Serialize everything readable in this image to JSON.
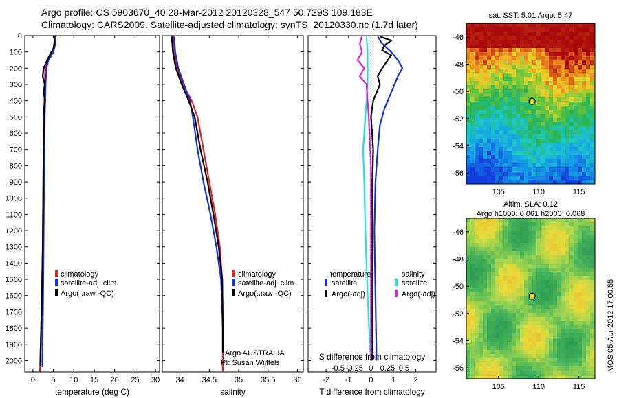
{
  "header": {
    "line1": "Argo profile: CS 5903670_40 28-Mar-2012 20120328_547 50.729S 109.183E",
    "line2": "Climatology: CARS2009. Satellite-adjusted climatology: synTS_20120330.nc (1.7d later)"
  },
  "colors": {
    "climatology": "#e02020",
    "satellite": "#1030e0",
    "argo": "#000000",
    "sat_salinity": "#20e0e0",
    "argo_salinity": "#e020e0"
  },
  "chart_data": [
    {
      "type": "line",
      "name": "temperature",
      "xlabel": "temperature (deg C)",
      "xlim": [
        -2,
        31
      ],
      "ylim": [
        2070,
        0
      ],
      "xticks": [
        0,
        5,
        10,
        15,
        20,
        25,
        30
      ],
      "yticks": [
        0,
        100,
        200,
        300,
        400,
        500,
        600,
        700,
        800,
        900,
        1000,
        1100,
        1200,
        1300,
        1400,
        1500,
        1600,
        1700,
        1800,
        1900,
        2000
      ],
      "legend": [
        "climatology",
        "satellite-adj. clim.",
        "Argo(..raw -QC)"
      ],
      "series": [
        {
          "name": "climatology",
          "color": "#e02020",
          "points": [
            [
              5.3,
              5
            ],
            [
              5.2,
              50
            ],
            [
              4.8,
              100
            ],
            [
              3.6,
              150
            ],
            [
              3.0,
              200
            ],
            [
              2.9,
              300
            ],
            [
              2.8,
              400
            ],
            [
              2.7,
              500
            ],
            [
              2.6,
              700
            ],
            [
              2.5,
              1000
            ],
            [
              2.4,
              1300
            ],
            [
              2.2,
              1600
            ],
            [
              2.0,
              1800
            ],
            [
              1.8,
              2000
            ],
            [
              1.7,
              2070
            ]
          ]
        },
        {
          "name": "satellite-adj. clim.",
          "color": "#1030e0",
          "points": [
            [
              5.6,
              5
            ],
            [
              5.4,
              60
            ],
            [
              5.0,
              100
            ],
            [
              3.8,
              150
            ],
            [
              3.3,
              200
            ],
            [
              3.1,
              300
            ],
            [
              3.0,
              400
            ],
            [
              2.9,
              500
            ],
            [
              2.8,
              700
            ],
            [
              2.7,
              1000
            ],
            [
              2.6,
              1300
            ],
            [
              2.5,
              1600
            ],
            [
              2.4,
              1800
            ],
            [
              2.3,
              2000
            ],
            [
              2.3,
              2040
            ]
          ]
        },
        {
          "name": "Argo(..raw -QC)",
          "color": "#000000",
          "points": [
            [
              5.2,
              5
            ],
            [
              5.3,
              40
            ],
            [
              5.0,
              80
            ],
            [
              4.3,
              110
            ],
            [
              3.5,
              150
            ],
            [
              2.6,
              200
            ],
            [
              2.4,
              250
            ],
            [
              2.9,
              300
            ],
            [
              2.6,
              350
            ],
            [
              3.0,
              400
            ],
            [
              2.7,
              450
            ],
            [
              2.8,
              500
            ],
            [
              2.6,
              700
            ],
            [
              2.5,
              1000
            ],
            [
              2.4,
              1300
            ],
            [
              2.2,
              1600
            ],
            [
              2.0,
              1800
            ],
            [
              1.8,
              2000
            ],
            [
              1.8,
              2030
            ]
          ]
        }
      ]
    },
    {
      "type": "line",
      "name": "salinity",
      "xlabel": "salinity",
      "xlim": [
        33.7,
        36.1
      ],
      "ylim": [
        2070,
        0
      ],
      "xticks": [
        34,
        34.5,
        35,
        35.5,
        36
      ],
      "legend": [
        "climatology",
        "satellite-adj. clim.",
        "Argo(..raw -QC)"
      ],
      "annotation": [
        "Argo AUSTRALIA",
        "PI: Susan Wijffels"
      ],
      "series": [
        {
          "name": "climatology",
          "color": "#e02020",
          "points": [
            [
              33.88,
              5
            ],
            [
              33.9,
              100
            ],
            [
              33.95,
              200
            ],
            [
              34.05,
              300
            ],
            [
              34.2,
              400
            ],
            [
              34.3,
              500
            ],
            [
              34.4,
              700
            ],
            [
              34.5,
              900
            ],
            [
              34.6,
              1100
            ],
            [
              34.68,
              1300
            ],
            [
              34.72,
              1500
            ],
            [
              34.73,
              1800
            ],
            [
              34.73,
              2000
            ],
            [
              34.73,
              2070
            ]
          ]
        },
        {
          "name": "satellite-adj. clim.",
          "color": "#1030e0",
          "points": [
            [
              33.9,
              5
            ],
            [
              33.92,
              100
            ],
            [
              33.97,
              200
            ],
            [
              34.07,
              300
            ],
            [
              34.17,
              400
            ],
            [
              34.22,
              500
            ],
            [
              34.3,
              700
            ],
            [
              34.4,
              900
            ],
            [
              34.52,
              1100
            ],
            [
              34.62,
              1300
            ],
            [
              34.7,
              1500
            ],
            [
              34.73,
              1800
            ],
            [
              34.73,
              1950
            ]
          ]
        },
        {
          "name": "Argo(..raw -QC)",
          "color": "#000000",
          "points": [
            [
              33.86,
              5
            ],
            [
              33.88,
              100
            ],
            [
              33.93,
              200
            ],
            [
              34.03,
              300
            ],
            [
              34.15,
              400
            ],
            [
              34.25,
              500
            ],
            [
              34.35,
              700
            ],
            [
              34.47,
              900
            ],
            [
              34.57,
              1100
            ],
            [
              34.66,
              1300
            ],
            [
              34.72,
              1500
            ],
            [
              34.73,
              1800
            ],
            [
              34.73,
              1950
            ]
          ]
        }
      ]
    },
    {
      "type": "line",
      "name": "difference",
      "xlabel": "T difference from climatology",
      "top_xlabel": "S difference from climatology",
      "xlim": [
        -2.8,
        2.9
      ],
      "ylim": [
        2070,
        0
      ],
      "xticks": [
        -2,
        -1,
        0,
        1,
        2
      ],
      "top_xticks": [
        -0.5,
        -0.25,
        0,
        0.25,
        0.5
      ],
      "legend_headings": [
        "temperature",
        "salinity"
      ],
      "legend": [
        "satellite",
        "Argo(-adj)",
        "satellite",
        "Argo(-adj)"
      ],
      "series": [
        {
          "name": "satellite",
          "color": "#1030e0",
          "points": [
            [
              0.3,
              5
            ],
            [
              0.5,
              50
            ],
            [
              0.9,
              100
            ],
            [
              1.2,
              150
            ],
            [
              1.4,
              200
            ],
            [
              1.2,
              250
            ],
            [
              0.9,
              350
            ],
            [
              0.6,
              450
            ],
            [
              0.4,
              550
            ],
            [
              0.3,
              700
            ],
            [
              0.2,
              900
            ],
            [
              0.15,
              1200
            ],
            [
              0.2,
              1600
            ],
            [
              0.25,
              2000
            ]
          ]
        },
        {
          "name": "Argo(-adj)",
          "color": "#000000",
          "points": [
            [
              0.4,
              5
            ],
            [
              0.9,
              30
            ],
            [
              0.6,
              60
            ],
            [
              0.5,
              90
            ],
            [
              0.9,
              120
            ],
            [
              0.5,
              200
            ],
            [
              0.3,
              250
            ],
            [
              0.4,
              300
            ],
            [
              0.1,
              400
            ],
            [
              0.0,
              500
            ],
            [
              0.1,
              700
            ],
            [
              0.05,
              1000
            ],
            [
              0.05,
              1500
            ],
            [
              0.05,
              2000
            ]
          ]
        },
        {
          "name": "satellite",
          "color": "#20e0e0",
          "points": [
            [
              -0.2,
              5
            ],
            [
              -0.15,
              100
            ],
            [
              -0.15,
              300
            ],
            [
              -0.2,
              400
            ],
            [
              -0.25,
              500
            ],
            [
              -0.3,
              600
            ],
            [
              -0.35,
              700
            ],
            [
              -0.3,
              900
            ],
            [
              -0.25,
              1200
            ],
            [
              -0.15,
              1600
            ],
            [
              -0.05,
              1900
            ],
            [
              0.0,
              2000
            ]
          ]
        },
        {
          "name": "Argo(-adj)",
          "color": "#e020e0",
          "points": [
            [
              -0.4,
              5
            ],
            [
              -0.5,
              50
            ],
            [
              -0.4,
              100
            ],
            [
              -0.6,
              150
            ],
            [
              -0.3,
              200
            ],
            [
              -0.5,
              250
            ],
            [
              -0.2,
              300
            ],
            [
              -0.1,
              500
            ],
            [
              0.0,
              800
            ],
            [
              0.0,
              2000
            ]
          ]
        }
      ]
    }
  ],
  "maps": [
    {
      "title": "sat. SST: 5.01 Argo: 5.47",
      "lat_ticks": [
        -46,
        -48,
        -50,
        -52,
        -54,
        -56
      ],
      "lon_ticks": [
        105,
        110,
        115
      ],
      "marker": {
        "lon": 109.18,
        "lat": -50.73
      }
    },
    {
      "title_line1": "Altim. SLA: 0.12",
      "title_line2": "Argo h1000: 0.061 h2000: 0.068",
      "lat_ticks": [
        -46,
        -48,
        -50,
        -52,
        -54,
        -56
      ],
      "lon_ticks": [
        105,
        110,
        115
      ],
      "marker": {
        "lon": 109.18,
        "lat": -50.73
      }
    }
  ],
  "footer_stamp": "IMOS 05-Apr-2012 17:00:55"
}
